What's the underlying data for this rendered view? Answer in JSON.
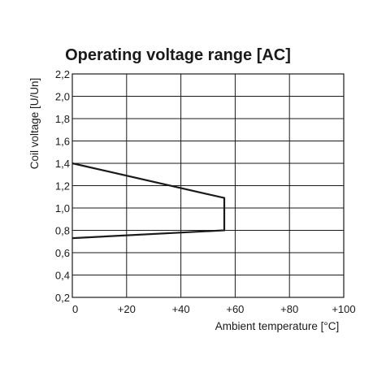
{
  "chart_data": {
    "type": "line",
    "title": "Operating voltage range [AC]",
    "xlabel": "Ambient temperature [°C]",
    "ylabel": "Coil voltage [U/Un]",
    "xlim": [
      0,
      100
    ],
    "ylim": [
      0.2,
      2.2
    ],
    "x_ticks": [
      0,
      20,
      40,
      60,
      80,
      100
    ],
    "x_tick_labels": [
      "0",
      "+20",
      "+40",
      "+60",
      "+80",
      "+100"
    ],
    "y_ticks": [
      0.2,
      0.4,
      0.6,
      0.8,
      1.0,
      1.2,
      1.4,
      1.6,
      1.8,
      2.0,
      2.2
    ],
    "y_tick_labels": [
      "0,2",
      "0,4",
      "0,6",
      "0,8",
      "1,0",
      "1,2",
      "1,4",
      "1,6",
      "1,8",
      "2,0",
      "2,2"
    ],
    "grid": true,
    "line_color": "#1a1a1a",
    "series": [
      {
        "x": [
          0,
          56,
          56,
          56,
          0
        ],
        "y": [
          1.4,
          1.09,
          1.0,
          0.8,
          0.73
        ]
      }
    ]
  }
}
